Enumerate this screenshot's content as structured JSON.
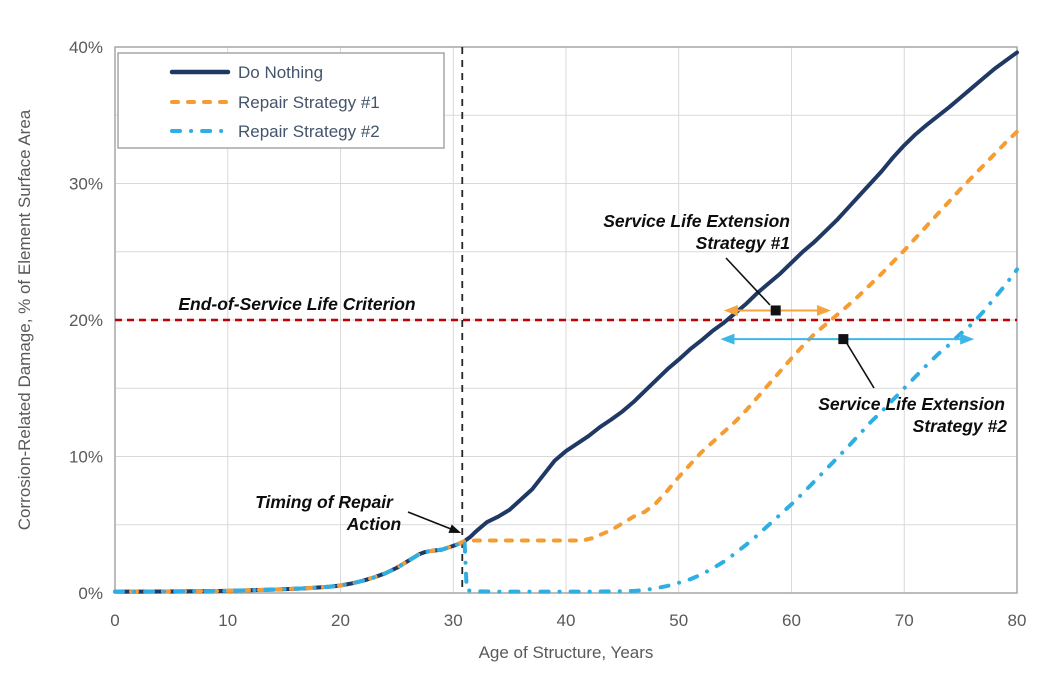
{
  "figure": {
    "x_axis_title": "Age of Structure, Years",
    "y_axis_title": "Corrosion-Related Damage, % of Element Surface Area"
  },
  "legend": {
    "items": [
      {
        "label": "Do Nothing"
      },
      {
        "label": "Repair Strategy #1"
      },
      {
        "label": "Repair Strategy #2"
      }
    ]
  },
  "annotations": {
    "eosl": "End-of-Service Life Criterion",
    "timing_line1": "Timing of Repair",
    "timing_line2": "Action",
    "sle1_line1": "Service Life Extension",
    "sle1_line2": "Strategy #1",
    "sle2_line1": "Service Life Extension",
    "sle2_line2": "Strategy #2"
  },
  "colors": {
    "do_nothing": "#1F3864",
    "repair_strategy_1": "#F59C33",
    "repair_strategy_2": "#2FAEE3",
    "eosl_line": "#C00000",
    "timing_line": "#262626",
    "axis_text": "#595959",
    "gridline": "#D9D9D9",
    "frame": "#A6A6A6",
    "annotation_text": "#0D0D0D"
  },
  "chart_data": {
    "type": "line",
    "title": "",
    "xlabel": "Age of Structure, Years",
    "ylabel": "Corrosion-Related Damage, % of Element Surface Area",
    "xlim": [
      0,
      80
    ],
    "ylim": [
      0,
      40
    ],
    "x_ticks": [
      0,
      10,
      20,
      30,
      40,
      50,
      60,
      70,
      80
    ],
    "x_tick_labels": [
      "0",
      "10",
      "20",
      "30",
      "40",
      "50",
      "60",
      "70",
      "80"
    ],
    "y_ticks": [
      0,
      10,
      20,
      30,
      40
    ],
    "y_tick_labels": [
      "0%",
      "10%",
      "20%",
      "30%",
      "40%"
    ],
    "x_gridlines": [
      10,
      20,
      30,
      40,
      50,
      60,
      70
    ],
    "y_gridlines": [
      5,
      10,
      15,
      20,
      25,
      30,
      35
    ],
    "grid": "on",
    "legend_position": "top-left-inside",
    "reference_lines": [
      {
        "name": "End-of-Service Life Criterion",
        "axis": "y",
        "value": 20,
        "color": "#C00000",
        "style": "dashed"
      },
      {
        "name": "Timing of Repair Action",
        "axis": "x",
        "value": 30.8,
        "color": "#262626",
        "style": "dashed"
      }
    ],
    "extension_arrows": [
      {
        "label": "Service Life Extension Strategy #1",
        "from_year": 54.0,
        "to_year": 63.5,
        "at_pct": 20.7,
        "marker_year": 58.6,
        "color": "#F5A43F"
      },
      {
        "label": "Service Life Extension Strategy #2",
        "from_year": 53.7,
        "to_year": 76.2,
        "at_pct": 18.6,
        "marker_year": 64.6,
        "color": "#3DB7E8"
      }
    ],
    "series": [
      {
        "name": "Do Nothing",
        "color": "#1F3864",
        "width": 4,
        "dash": null,
        "cap": "round",
        "points": [
          [
            0,
            0.1
          ],
          [
            2,
            0.1
          ],
          [
            4,
            0.11
          ],
          [
            6,
            0.12
          ],
          [
            8,
            0.14
          ],
          [
            10,
            0.16
          ],
          [
            12,
            0.2
          ],
          [
            14,
            0.25
          ],
          [
            16,
            0.31
          ],
          [
            17,
            0.35
          ],
          [
            18,
            0.4
          ],
          [
            19,
            0.46
          ],
          [
            20,
            0.55
          ],
          [
            21,
            0.7
          ],
          [
            22,
            0.9
          ],
          [
            23,
            1.15
          ],
          [
            24,
            1.45
          ],
          [
            25,
            1.85
          ],
          [
            26,
            2.35
          ],
          [
            27,
            2.85
          ],
          [
            27.5,
            3.0
          ],
          [
            28,
            3.08
          ],
          [
            29,
            3.18
          ],
          [
            30,
            3.45
          ],
          [
            30.5,
            3.6
          ],
          [
            31,
            3.8
          ],
          [
            31.5,
            4.1
          ],
          [
            32,
            4.5
          ],
          [
            33,
            5.2
          ],
          [
            34,
            5.6
          ],
          [
            35,
            6.1
          ],
          [
            36,
            6.85
          ],
          [
            37,
            7.6
          ],
          [
            38,
            8.65
          ],
          [
            39,
            9.7
          ],
          [
            40,
            10.4
          ],
          [
            41,
            10.95
          ],
          [
            42,
            11.5
          ],
          [
            43,
            12.15
          ],
          [
            44,
            12.7
          ],
          [
            45,
            13.3
          ],
          [
            46,
            14.0
          ],
          [
            47,
            14.8
          ],
          [
            48,
            15.6
          ],
          [
            49,
            16.4
          ],
          [
            50,
            17.1
          ],
          [
            51,
            17.85
          ],
          [
            52,
            18.5
          ],
          [
            53,
            19.2
          ],
          [
            54,
            19.8
          ],
          [
            55,
            20.5
          ],
          [
            56,
            21.2
          ],
          [
            57,
            22.0
          ],
          [
            58,
            22.7
          ],
          [
            59,
            23.4
          ],
          [
            60,
            24.2
          ],
          [
            61,
            25.0
          ],
          [
            62,
            25.7
          ],
          [
            63,
            26.5
          ],
          [
            64,
            27.3
          ],
          [
            65,
            28.2
          ],
          [
            66,
            29.1
          ],
          [
            67,
            30.0
          ],
          [
            68,
            30.9
          ],
          [
            69,
            31.9
          ],
          [
            70,
            32.8
          ],
          [
            71,
            33.6
          ],
          [
            72,
            34.3
          ],
          [
            73,
            34.95
          ],
          [
            74,
            35.6
          ],
          [
            75,
            36.3
          ],
          [
            76,
            37.0
          ],
          [
            77,
            37.7
          ],
          [
            78,
            38.4
          ],
          [
            79,
            39.0
          ],
          [
            80,
            39.6
          ]
        ]
      },
      {
        "name": "Repair Strategy #1",
        "color": "#F59C33",
        "width": 4,
        "dash": "6 10",
        "cap": "round",
        "points": [
          [
            0,
            0.1
          ],
          [
            2,
            0.1
          ],
          [
            4,
            0.11
          ],
          [
            6,
            0.12
          ],
          [
            8,
            0.14
          ],
          [
            10,
            0.16
          ],
          [
            12,
            0.2
          ],
          [
            14,
            0.25
          ],
          [
            16,
            0.31
          ],
          [
            17,
            0.35
          ],
          [
            18,
            0.4
          ],
          [
            19,
            0.46
          ],
          [
            20,
            0.55
          ],
          [
            21,
            0.7
          ],
          [
            22,
            0.9
          ],
          [
            23,
            1.15
          ],
          [
            24,
            1.45
          ],
          [
            25,
            1.85
          ],
          [
            26,
            2.35
          ],
          [
            27,
            2.85
          ],
          [
            27.5,
            3.0
          ],
          [
            28,
            3.08
          ],
          [
            29,
            3.18
          ],
          [
            30,
            3.45
          ],
          [
            30.5,
            3.6
          ],
          [
            31,
            3.8
          ],
          [
            32,
            3.85
          ],
          [
            34,
            3.85
          ],
          [
            36,
            3.85
          ],
          [
            38,
            3.85
          ],
          [
            40,
            3.85
          ],
          [
            41.5,
            3.85
          ],
          [
            42.5,
            4.05
          ],
          [
            43,
            4.25
          ],
          [
            44,
            4.6
          ],
          [
            45,
            5.1
          ],
          [
            46,
            5.6
          ],
          [
            47,
            5.95
          ],
          [
            48,
            6.6
          ],
          [
            49,
            7.5
          ],
          [
            50,
            8.5
          ],
          [
            51,
            9.4
          ],
          [
            52,
            10.3
          ],
          [
            53,
            11.05
          ],
          [
            54,
            11.8
          ],
          [
            55,
            12.55
          ],
          [
            56,
            13.4
          ],
          [
            57,
            14.35
          ],
          [
            58,
            15.3
          ],
          [
            59,
            16.25
          ],
          [
            60,
            17.2
          ],
          [
            61,
            18.1
          ],
          [
            62,
            18.95
          ],
          [
            63,
            19.65
          ],
          [
            64,
            20.35
          ],
          [
            65,
            21.05
          ],
          [
            66,
            21.8
          ],
          [
            67,
            22.6
          ],
          [
            68,
            23.4
          ],
          [
            69,
            24.25
          ],
          [
            70,
            25.1
          ],
          [
            71,
            26.0
          ],
          [
            72,
            26.9
          ],
          [
            73,
            27.8
          ],
          [
            74,
            28.7
          ],
          [
            75,
            29.6
          ],
          [
            76,
            30.45
          ],
          [
            77,
            31.3
          ],
          [
            78,
            32.15
          ],
          [
            79,
            33.0
          ],
          [
            80,
            33.8
          ]
        ]
      },
      {
        "name": "Repair Strategy #2",
        "color": "#2FAEE3",
        "width": 4,
        "dash": "8 11 0.1 11",
        "cap": "round",
        "points": [
          [
            0,
            0.1
          ],
          [
            2,
            0.1
          ],
          [
            4,
            0.11
          ],
          [
            6,
            0.12
          ],
          [
            8,
            0.14
          ],
          [
            10,
            0.16
          ],
          [
            12,
            0.2
          ],
          [
            14,
            0.25
          ],
          [
            16,
            0.31
          ],
          [
            17,
            0.35
          ],
          [
            18,
            0.4
          ],
          [
            19,
            0.46
          ],
          [
            20,
            0.55
          ],
          [
            21,
            0.7
          ],
          [
            22,
            0.9
          ],
          [
            23,
            1.15
          ],
          [
            24,
            1.45
          ],
          [
            25,
            1.85
          ],
          [
            26,
            2.35
          ],
          [
            27,
            2.85
          ],
          [
            27.5,
            3.0
          ],
          [
            28,
            3.08
          ],
          [
            29,
            3.18
          ],
          [
            30,
            3.45
          ],
          [
            30.5,
            3.6
          ],
          [
            31,
            3.8
          ],
          [
            31.2,
            0.2
          ],
          [
            32,
            0.12
          ],
          [
            34,
            0.1
          ],
          [
            36,
            0.1
          ],
          [
            38,
            0.1
          ],
          [
            40,
            0.1
          ],
          [
            42,
            0.1
          ],
          [
            44,
            0.12
          ],
          [
            46,
            0.15
          ],
          [
            47,
            0.22
          ],
          [
            48,
            0.35
          ],
          [
            49,
            0.52
          ],
          [
            50,
            0.75
          ],
          [
            51,
            1.0
          ],
          [
            52,
            1.35
          ],
          [
            53,
            1.8
          ],
          [
            54,
            2.3
          ],
          [
            55,
            2.9
          ],
          [
            56,
            3.55
          ],
          [
            57,
            4.25
          ],
          [
            58,
            5.0
          ],
          [
            59,
            5.75
          ],
          [
            60,
            6.5
          ],
          [
            61,
            7.3
          ],
          [
            62,
            8.15
          ],
          [
            63,
            9.0
          ],
          [
            64,
            9.85
          ],
          [
            65,
            10.7
          ],
          [
            66,
            11.6
          ],
          [
            67,
            12.5
          ],
          [
            68,
            13.3
          ],
          [
            69,
            14.15
          ],
          [
            70,
            15.0
          ],
          [
            71,
            15.85
          ],
          [
            72,
            16.7
          ],
          [
            73,
            17.5
          ],
          [
            74,
            18.2
          ],
          [
            75,
            19.0
          ],
          [
            76,
            19.7
          ],
          [
            77,
            20.6
          ],
          [
            78,
            21.6
          ],
          [
            79,
            22.6
          ],
          [
            80,
            23.7
          ]
        ]
      }
    ]
  }
}
